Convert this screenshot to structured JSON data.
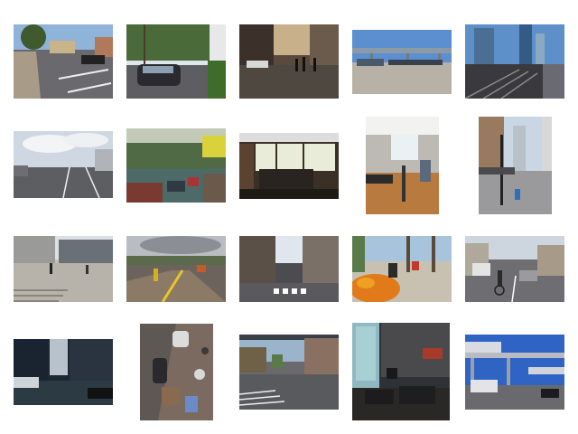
{
  "grid": {
    "rows": 4,
    "columns": 5,
    "background": "#ffffff",
    "thumbnails": [
      {
        "id": "t01",
        "scene": "street-intersection",
        "orientation": "landscape"
      },
      {
        "id": "t02",
        "scene": "tree-lined-street-car",
        "orientation": "landscape"
      },
      {
        "id": "t03",
        "scene": "cobblestone-plaza-pedestrians",
        "orientation": "landscape"
      },
      {
        "id": "t04",
        "scene": "parking-lot-overpass",
        "orientation": "landscape"
      },
      {
        "id": "t05",
        "scene": "city-skyline-rail-tracks",
        "orientation": "landscape"
      },
      {
        "id": "t06",
        "scene": "highway-cloudy-sky",
        "orientation": "landscape"
      },
      {
        "id": "t07",
        "scene": "hillside-street-view",
        "orientation": "landscape"
      },
      {
        "id": "t08",
        "scene": "interior-room-windows",
        "orientation": "landscape"
      },
      {
        "id": "t09",
        "scene": "office-interior",
        "orientation": "portrait"
      },
      {
        "id": "t10",
        "scene": "downtown-sidewalk",
        "orientation": "portrait"
      },
      {
        "id": "t11",
        "scene": "plaza-steps",
        "orientation": "landscape"
      },
      {
        "id": "t12",
        "scene": "train-platform",
        "orientation": "landscape"
      },
      {
        "id": "t13",
        "scene": "narrow-street-crosswalk",
        "orientation": "landscape"
      },
      {
        "id": "t14",
        "scene": "flower-bed-street",
        "orientation": "landscape"
      },
      {
        "id": "t15",
        "scene": "cyclist-on-road",
        "orientation": "landscape"
      },
      {
        "id": "t16",
        "scene": "dark-city-street-bus",
        "orientation": "landscape"
      },
      {
        "id": "t17",
        "scene": "aerial-sidewalk-view",
        "orientation": "portrait"
      },
      {
        "id": "t18",
        "scene": "residential-street-intersection",
        "orientation": "landscape"
      },
      {
        "id": "t19",
        "scene": "lounge-interior",
        "orientation": "portrait"
      },
      {
        "id": "t20",
        "scene": "elevated-train-bridge",
        "orientation": "landscape"
      }
    ]
  }
}
